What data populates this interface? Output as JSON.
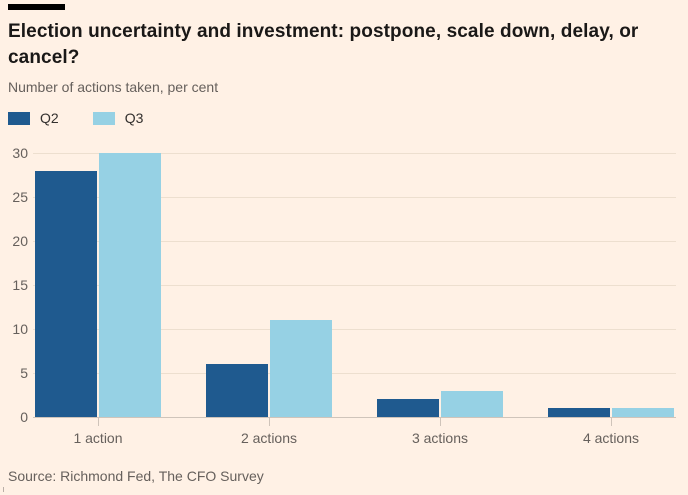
{
  "chart_data": {
    "type": "bar",
    "title": "Election uncertainty and investment: postpone, scale down, delay, or cancel?",
    "subtitle": "Number of actions taken, per cent",
    "categories": [
      "1 action",
      "2 actions",
      "3 actions",
      "4 actions"
    ],
    "series": [
      {
        "name": "Q2",
        "color": "#1f5a8f",
        "values": [
          28,
          6,
          2,
          1
        ]
      },
      {
        "name": "Q3",
        "color": "#96d1e4",
        "values": [
          30,
          11,
          3,
          1
        ]
      }
    ],
    "xlabel": "",
    "ylabel": "",
    "ylim": [
      0,
      30
    ],
    "yticks": [
      0,
      5,
      10,
      15,
      20,
      25,
      30
    ],
    "grid": true,
    "legend_position": "top-left",
    "source": "Source: Richmond Fed, The CFO Survey"
  },
  "colors": {
    "background": "#fff1e5",
    "top_rule": "#000000",
    "title_text": "#1a1817",
    "muted_text": "#66605c",
    "legend_text": "#33302e",
    "gridline": "#eddfcf",
    "axis_line": "#cfc4ba"
  }
}
